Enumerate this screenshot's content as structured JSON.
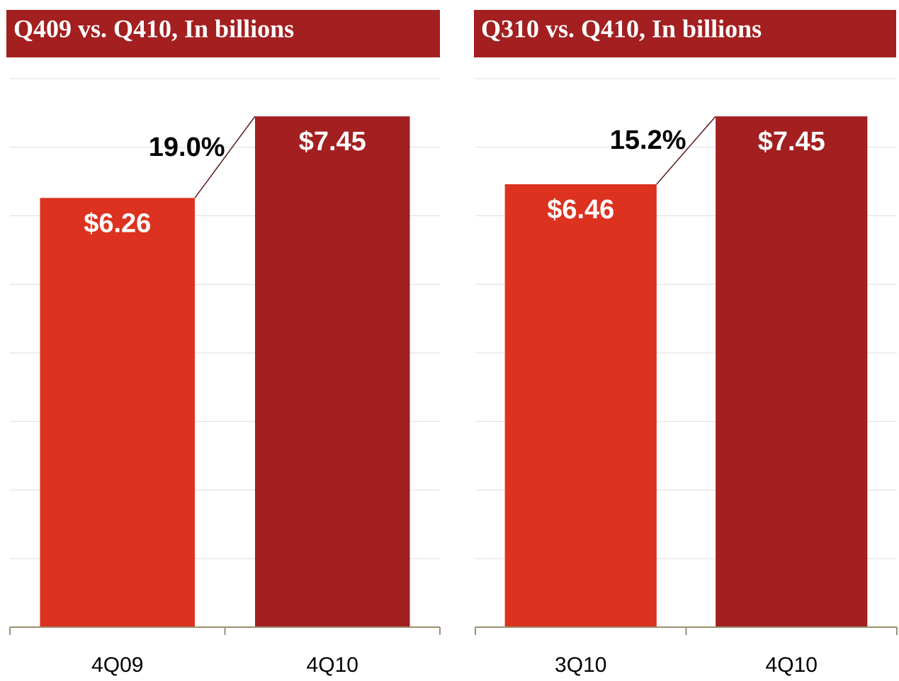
{
  "chart_data": [
    {
      "type": "bar",
      "title": "Q409 vs. Q410, In billions",
      "categories": [
        "4Q09",
        "4Q10"
      ],
      "values": [
        6.26,
        7.45
      ],
      "value_labels": [
        "$6.26",
        "$7.45"
      ],
      "colors": [
        "#dc321f",
        "#a31f20"
      ],
      "ylim": [
        0,
        8
      ],
      "yticks": [
        0,
        1,
        2,
        3,
        4,
        5,
        6,
        7,
        8
      ],
      "grid": true,
      "annotation": "19.0%"
    },
    {
      "type": "bar",
      "title": "Q310 vs. Q410, In billions",
      "categories": [
        "3Q10",
        "4Q10"
      ],
      "values": [
        6.46,
        7.45
      ],
      "value_labels": [
        "$6.46",
        "$7.45"
      ],
      "colors": [
        "#dc321f",
        "#a31f20"
      ],
      "ylim": [
        0,
        8
      ],
      "yticks": [
        0,
        1,
        2,
        3,
        4,
        5,
        6,
        7,
        8
      ],
      "grid": true,
      "annotation": "15.2%"
    }
  ]
}
